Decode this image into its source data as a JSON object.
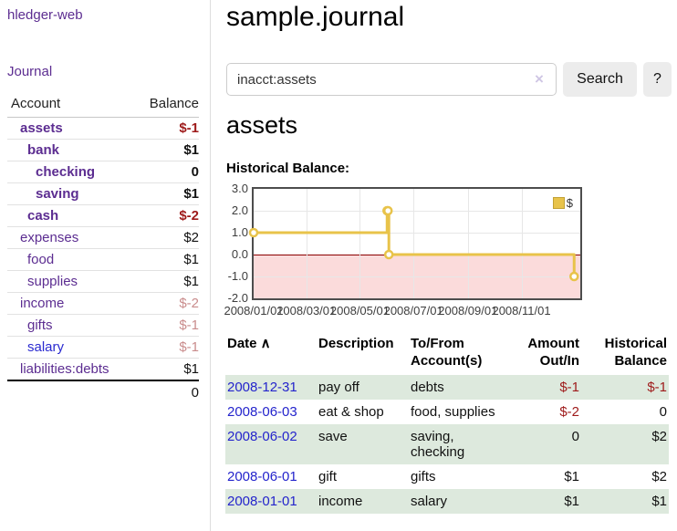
{
  "colors": {
    "link_purple": "#5c2d91",
    "link_blue": "#2424cc",
    "negative_strong": "#9e1a1a",
    "negative_soft": "#c98c8c",
    "row_green": "#dde9dd",
    "series_gold": "#e8c34a",
    "negative_region_pink": "#fbdbdb",
    "zero_line_red": "#8b0000"
  },
  "sidebar": {
    "brand": "hledger-web",
    "journal_link": "Journal",
    "accounts_table": {
      "account_header": "Account",
      "balance_header": "Balance",
      "rows": [
        {
          "name": "assets",
          "depth": 1,
          "bold": true,
          "balance": "$-1",
          "balance_style": "neg-strong"
        },
        {
          "name": "bank",
          "depth": 2,
          "bold": true,
          "balance": "$1",
          "balance_style": "pos"
        },
        {
          "name": "checking",
          "depth": 3,
          "bold": true,
          "balance": "0",
          "balance_style": "pos"
        },
        {
          "name": "saving",
          "depth": 3,
          "bold": true,
          "balance": "$1",
          "balance_style": "pos"
        },
        {
          "name": "cash",
          "depth": 2,
          "bold": true,
          "balance": "$-2",
          "balance_style": "neg-strong"
        },
        {
          "name": "expenses",
          "depth": 1,
          "bold": false,
          "balance": "$2",
          "balance_style": "pos"
        },
        {
          "name": "food",
          "depth": 2,
          "bold": false,
          "balance": "$1",
          "balance_style": "pos"
        },
        {
          "name": "supplies",
          "depth": 2,
          "bold": false,
          "balance": "$1",
          "balance_style": "pos"
        },
        {
          "name": "income",
          "depth": 1,
          "bold": false,
          "balance": "$-2",
          "balance_style": "neg-soft"
        },
        {
          "name": "gifts",
          "depth": 2,
          "bold": false,
          "balance": "$-1",
          "balance_style": "neg-soft"
        },
        {
          "name": "salary",
          "depth": 2,
          "bold": false,
          "balance": "$-1",
          "balance_style": "neg-soft",
          "link_color": "blue"
        },
        {
          "name": "liabilities:debts",
          "depth": 1,
          "bold": false,
          "balance": "$1",
          "balance_style": "pos"
        }
      ],
      "total": "0"
    }
  },
  "header": {
    "title": "sample.journal"
  },
  "search": {
    "value": "inacct:assets",
    "clear_icon": "×",
    "button_label": "Search",
    "help_label": "?"
  },
  "account_page": {
    "heading": "assets",
    "chart_title": "Historical Balance:"
  },
  "chart_data": {
    "type": "line",
    "step": true,
    "title": "Historical Balance:",
    "series": [
      {
        "name": "$",
        "color": "#e8c34a",
        "points": [
          {
            "date": "2008/01/01",
            "value": 1
          },
          {
            "date": "2008/06/01",
            "value": 2
          },
          {
            "date": "2008/06/02",
            "value": 2
          },
          {
            "date": "2008/06/03",
            "value": 0
          },
          {
            "date": "2008/12/31",
            "value": -1
          }
        ]
      }
    ],
    "yticks": [
      "3.0",
      "2.0",
      "1.0",
      "0.0",
      "-1.0",
      "-2.0"
    ],
    "ylim": [
      -2,
      3
    ],
    "xticks": [
      "2008/01/01",
      "2008/03/01",
      "2008/05/01",
      "2008/07/01",
      "2008/09/01",
      "2008/11/01"
    ],
    "x_start": "2008/01/01",
    "x_span_days": 372,
    "legend": {
      "label": "$",
      "position": "top-right"
    },
    "grid": true,
    "negative_region_shaded": true
  },
  "register": {
    "headers": [
      {
        "label": "Date",
        "sort_icon": "∧",
        "align": "left"
      },
      {
        "label": "Description",
        "align": "left"
      },
      {
        "label": "To/From\nAccount(s)",
        "align": "left"
      },
      {
        "label": "Amount\nOut/In",
        "align": "right"
      },
      {
        "label": "Historical\nBalance",
        "align": "right"
      }
    ],
    "rows": [
      {
        "date": "2008-12-31",
        "description": "pay off",
        "accounts": "debts",
        "amount": "$-1",
        "amount_neg": true,
        "balance": "$-1",
        "balance_neg": true
      },
      {
        "date": "2008-06-03",
        "description": "eat & shop",
        "accounts": "food, supplies",
        "amount": "$-2",
        "amount_neg": true,
        "balance": "0",
        "balance_neg": false
      },
      {
        "date": "2008-06-02",
        "description": "save",
        "accounts": "saving,\nchecking",
        "amount": "0",
        "amount_neg": false,
        "balance": "$2",
        "balance_neg": false
      },
      {
        "date": "2008-06-01",
        "description": "gift",
        "accounts": "gifts",
        "amount": "$1",
        "amount_neg": false,
        "balance": "$2",
        "balance_neg": false
      },
      {
        "date": "2008-01-01",
        "description": "income",
        "accounts": "salary",
        "amount": "$1",
        "amount_neg": false,
        "balance": "$1",
        "balance_neg": false
      }
    ]
  }
}
